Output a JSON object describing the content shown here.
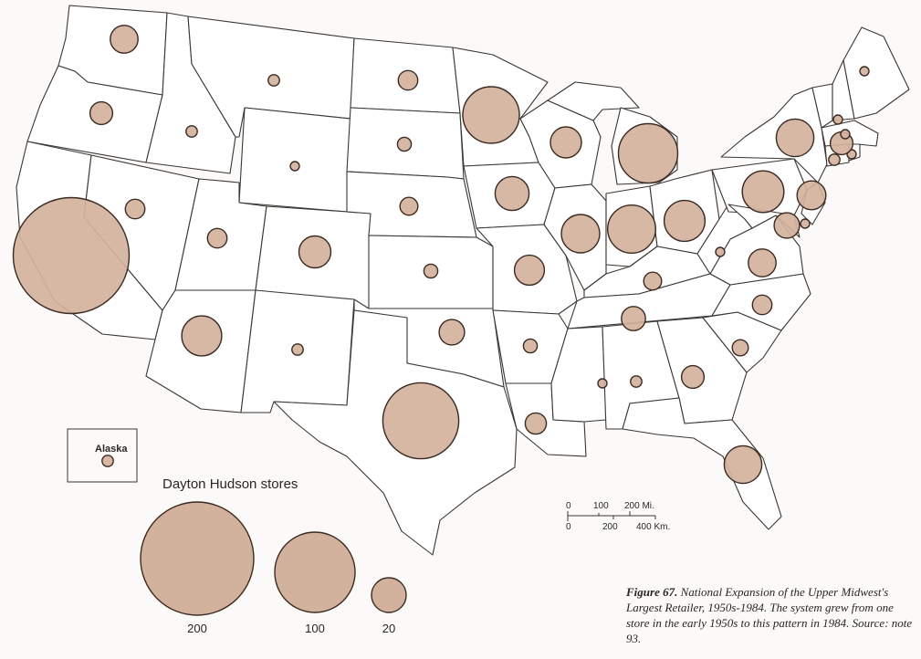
{
  "legend": {
    "title": "Dayton Hudson stores",
    "labels": [
      "200",
      "100",
      "20"
    ]
  },
  "inset_label": "Alaska",
  "scale": {
    "miles": [
      "0",
      "100",
      "200 Mi."
    ],
    "km": [
      "0",
      "200",
      "400 Km."
    ]
  },
  "caption": {
    "figure_label": "Figure 67.",
    "text": "National Expansion of the Upper Midwest's Largest Retailer, 1950s-1984. The system grew from one store in the early 1950s to this pattern in 1984. Source: note 93."
  },
  "colors": {
    "symbol_fill": "#d3b29d",
    "symbol_stroke": "#3b2a22"
  },
  "symbols": [
    {
      "id": "WA",
      "stores": 12
    },
    {
      "id": "OR",
      "stores": 8
    },
    {
      "id": "CA",
      "stores": 210
    },
    {
      "id": "NV",
      "stores": 6
    },
    {
      "id": "ID",
      "stores": 2
    },
    {
      "id": "MT",
      "stores": 2
    },
    {
      "id": "WY",
      "stores": 1
    },
    {
      "id": "UT",
      "stores": 6
    },
    {
      "id": "CO",
      "stores": 16
    },
    {
      "id": "AZ",
      "stores": 25
    },
    {
      "id": "NM",
      "stores": 2
    },
    {
      "id": "ND",
      "stores": 6
    },
    {
      "id": "SD",
      "stores": 3
    },
    {
      "id": "NE",
      "stores": 5
    },
    {
      "id": "KS",
      "stores": 3
    },
    {
      "id": "OK",
      "stores": 10
    },
    {
      "id": "TX",
      "stores": 90
    },
    {
      "id": "MN",
      "stores": 50
    },
    {
      "id": "IA",
      "stores": 18
    },
    {
      "id": "MO",
      "stores": 14
    },
    {
      "id": "AR",
      "stores": 3
    },
    {
      "id": "LA",
      "stores": 7
    },
    {
      "id": "WI",
      "stores": 15
    },
    {
      "id": "IL",
      "stores": 23
    },
    {
      "id": "MI",
      "stores": 55
    },
    {
      "id": "IN",
      "stores": 36
    },
    {
      "id": "OH",
      "stores": 26
    },
    {
      "id": "KY",
      "stores": 5
    },
    {
      "id": "TN",
      "stores": 9
    },
    {
      "id": "MS",
      "stores": 1
    },
    {
      "id": "AL",
      "stores": 2
    },
    {
      "id": "GA",
      "stores": 8
    },
    {
      "id": "FL",
      "stores": 22
    },
    {
      "id": "SC",
      "stores": 4
    },
    {
      "id": "NC",
      "stores": 6
    },
    {
      "id": "VA",
      "stores": 12
    },
    {
      "id": "WV",
      "stores": 1
    },
    {
      "id": "PA",
      "stores": 27
    },
    {
      "id": "NY",
      "stores": 22
    },
    {
      "id": "NJ",
      "stores": 13
    },
    {
      "id": "MD",
      "stores": 10
    },
    {
      "id": "DE",
      "stores": 1
    },
    {
      "id": "CT",
      "stores": 2
    },
    {
      "id": "RI",
      "stores": 1
    },
    {
      "id": "MA",
      "stores": 8
    },
    {
      "id": "VT",
      "stores": 1
    },
    {
      "id": "NH",
      "stores": 1
    },
    {
      "id": "ME",
      "stores": 1
    },
    {
      "id": "AK",
      "stores": 2
    }
  ]
}
